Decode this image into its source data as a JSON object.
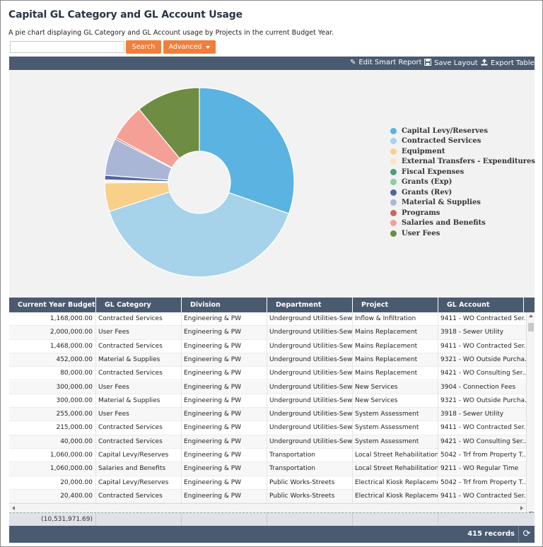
{
  "header": {
    "title": "Capital GL Category and GL Account Usage",
    "description": "A pie chart displaying GL Category and GL Account usage by Projects in the current Budget Year."
  },
  "search": {
    "value": "",
    "placeholder": "",
    "search_label": "Search",
    "advanced_label": "Advanced"
  },
  "toolbar": {
    "edit_label": "Edit Smart Report",
    "save_label": "Save Layout",
    "export_label": "Export Table"
  },
  "chart_data": {
    "type": "pie",
    "donut": true,
    "legend_position": "right",
    "slices": [
      {
        "name": "Capital Levy/Reserves",
        "value": 31.0,
        "color": "#5ab3e0"
      },
      {
        "name": "Contracted Services",
        "value": 40.5,
        "color": "#a6d3ea"
      },
      {
        "name": "Equipment",
        "value": 5.0,
        "color": "#f8d08a"
      },
      {
        "name": "External Transfers - Expenditures",
        "value": 0.3,
        "color": "#f9e6c2"
      },
      {
        "name": "Fiscal Expenses",
        "value": 0.1,
        "color": "#4c9e76"
      },
      {
        "name": "Grants (Exp)",
        "value": 0.1,
        "color": "#86cfa8"
      },
      {
        "name": "Grants (Rev)",
        "value": 0.8,
        "color": "#5465a0"
      },
      {
        "name": "Material & Supplies",
        "value": 6.5,
        "color": "#a9b6d6"
      },
      {
        "name": "Programs",
        "value": 0.3,
        "color": "#c56a63"
      },
      {
        "name": "Salaries and Benefits",
        "value": 6.3,
        "color": "#f5a097"
      },
      {
        "name": "User Fees",
        "value": 11.2,
        "color": "#6e8c42"
      }
    ]
  },
  "table": {
    "columns": [
      "Current Year Budget",
      "GL Category",
      "Division",
      "Department",
      "Project",
      "GL Account"
    ],
    "rows": [
      [
        "1,168,000.00",
        "Contracted Services",
        "Engineering & PW",
        "Underground Utilities-Sew...",
        "Inflow & Infiltration",
        "9411 - WO Contracted Ser..."
      ],
      [
        "2,000,000.00",
        "User Fees",
        "Engineering & PW",
        "Underground Utilities-Sew...",
        "Mains Replacement",
        "3918 - Sewer Utility"
      ],
      [
        "1,468,000.00",
        "Contracted Services",
        "Engineering & PW",
        "Underground Utilities-Sew...",
        "Mains Replacement",
        "9411 - WO Contracted Ser..."
      ],
      [
        "452,000.00",
        "Material & Supplies",
        "Engineering & PW",
        "Underground Utilities-Sew...",
        "Mains Replacement",
        "9321 - WO Outside Purcha..."
      ],
      [
        "80,000.00",
        "Contracted Services",
        "Engineering & PW",
        "Underground Utilities-Sew...",
        "Mains Replacement",
        "9421 - WO Consulting Ser..."
      ],
      [
        "300,000.00",
        "User Fees",
        "Engineering & PW",
        "Underground Utilities-Sew...",
        "New Services",
        "3904 - Connection Fees"
      ],
      [
        "300,000.00",
        "Material & Supplies",
        "Engineering & PW",
        "Underground Utilities-Sew...",
        "New Services",
        "9321 - WO Outside Purcha..."
      ],
      [
        "255,000.00",
        "User Fees",
        "Engineering & PW",
        "Underground Utilities-Sew...",
        "System Assessment",
        "3918 - Sewer Utility"
      ],
      [
        "215,000.00",
        "Contracted Services",
        "Engineering & PW",
        "Underground Utilities-Sew...",
        "System Assessment",
        "9411 - WO Contracted Ser..."
      ],
      [
        "40,000.00",
        "Contracted Services",
        "Engineering & PW",
        "Underground Utilities-Sew...",
        "System Assessment",
        "9421 - WO Consulting Ser..."
      ],
      [
        "1,060,000.00",
        "Capital Levy/Reserves",
        "Engineering & PW",
        "Transportation",
        "Local Street Rehabilitation",
        "5042 - Trf from Property T..."
      ],
      [
        "1,060,000.00",
        "Salaries and Benefits",
        "Engineering & PW",
        "Transportation",
        "Local Street Rehabilitation",
        "9211 - WO Regular Time"
      ],
      [
        "20,000.00",
        "Capital Levy/Reserves",
        "Engineering & PW",
        "Public Works-Streets",
        "Electrical Kiosk Replaceme...",
        "5042 - Trf from Property T..."
      ],
      [
        "20,400.00",
        "Contracted Services",
        "Engineering & PW",
        "Public Works-Streets",
        "Electrical Kiosk Replaceme...",
        "9411 - WO Contracted Ser..."
      ]
    ],
    "total": "(10,531,971.69)"
  },
  "footer": {
    "records": "415 records"
  }
}
